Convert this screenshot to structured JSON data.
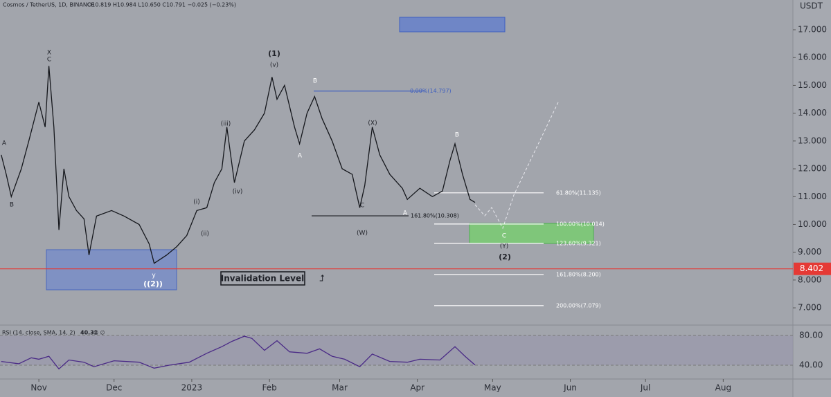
{
  "header": {
    "symbol": "Cosmos / TetherUS, 1D, BINANCE",
    "ohlc": "O10.819 H10.984 L10.650 C10.791 −0.025 (−0.23%)"
  },
  "chart_data": [
    {
      "type": "line",
      "axis_unit": "USDT",
      "x": [
        -15,
        -13,
        -11,
        -7,
        -4,
        0,
        2.5,
        4,
        6,
        8,
        10,
        12,
        15,
        18,
        20,
        23,
        29,
        34,
        40,
        44,
        46,
        51,
        55,
        59,
        63,
        67,
        70,
        73,
        75,
        78,
        82,
        86,
        90,
        93,
        95,
        98,
        102,
        104,
        107,
        110,
        113,
        117,
        121,
        125,
        128,
        130,
        133,
        136,
        140,
        145,
        147,
        152,
        157,
        161,
        164,
        166,
        169,
        172,
        174
      ],
      "series": [
        {
          "name": "Cosmos / TetherUS",
          "color": "#15171c",
          "values": [
            12.5,
            11.8,
            11.0,
            12.0,
            13.0,
            14.4,
            13.5,
            15.7,
            13.5,
            9.8,
            12.0,
            11.0,
            10.5,
            10.2,
            8.9,
            10.3,
            10.5,
            10.3,
            10.0,
            9.3,
            8.6,
            8.9,
            9.2,
            9.6,
            10.5,
            10.6,
            11.5,
            12.0,
            13.5,
            11.5,
            13.0,
            13.4,
            14.0,
            15.3,
            14.5,
            15.0,
            13.5,
            12.9,
            14.0,
            14.6,
            13.8,
            13.0,
            12.0,
            11.8,
            10.6,
            11.4,
            13.5,
            12.5,
            11.8,
            11.3,
            10.9,
            11.3,
            11.0,
            11.2,
            12.3,
            12.9,
            11.8,
            10.9,
            10.791
          ]
        }
      ],
      "xlim": [
        -15.5,
        300.8
      ],
      "xticks": [
        {
          "value": 0,
          "label": "Nov"
        },
        {
          "value": 30,
          "label": "Dec"
        },
        {
          "value": 61,
          "label": "2023"
        },
        {
          "value": 92,
          "label": "Feb"
        },
        {
          "value": 120,
          "label": "Mar"
        },
        {
          "value": 151,
          "label": "Apr"
        },
        {
          "value": 181,
          "label": "May"
        },
        {
          "value": 212,
          "label": "Jun"
        },
        {
          "value": 242,
          "label": "Jul"
        },
        {
          "value": 273,
          "label": "Aug"
        }
      ],
      "ylim": [
        6.38,
        18.07
      ],
      "yticks": [
        {
          "value": 7,
          "label": "7.000"
        },
        {
          "value": 8,
          "label": "8.000"
        },
        {
          "value": 9,
          "label": "9.000"
        },
        {
          "value": 10,
          "label": "10.000"
        },
        {
          "value": 11,
          "label": "11.000"
        },
        {
          "value": 12,
          "label": "12.000"
        },
        {
          "value": 13,
          "label": "13.000"
        },
        {
          "value": 14,
          "label": "14.000"
        },
        {
          "value": 15,
          "label": "15.000"
        },
        {
          "value": 16,
          "label": "16.000"
        },
        {
          "value": 17,
          "label": "17.000"
        }
      ],
      "invalidation": 8.402,
      "invalidation_label": "Invalidation Level",
      "fib_levels": [
        {
          "value": 14.797,
          "label": "0.00%(14.797)"
        },
        {
          "value": 10.308,
          "label": "161.80%(10.308)"
        },
        {
          "value": 11.135,
          "label": "61.80%(11.135)"
        },
        {
          "value": 10.014,
          "label": "100.00%(10.014)"
        },
        {
          "value": 9.321,
          "label": "123.60%(9.321)"
        },
        {
          "value": 8.2,
          "label": "161.80%(8.200)"
        },
        {
          "value": 7.079,
          "label": "200.00%(7.079)"
        }
      ],
      "wave_labels": [
        "A",
        "B",
        "X",
        "C",
        "y",
        "((2))",
        "(i)",
        "(ii)",
        "(iii)",
        "(iv)",
        "(1)",
        "(v)",
        "B",
        "A",
        "(X)",
        "C",
        "(W)",
        "A",
        "B",
        "C",
        "(Y)",
        "(2)"
      ]
    },
    {
      "type": "line",
      "title": "RSI (14, close, SMA, 14, 2)",
      "last_value": 40.31,
      "extra": "∅ ∅",
      "x": [
        -15,
        -8,
        -3,
        0,
        4,
        8,
        12,
        18,
        22,
        30,
        40,
        46,
        52,
        60,
        67,
        73,
        77,
        82,
        85,
        90,
        95,
        100,
        107,
        112,
        117,
        122,
        128,
        133,
        140,
        147,
        152,
        160,
        166,
        170,
        174
      ],
      "series": [
        {
          "name": "RSI",
          "color": "#4a2a86",
          "values": [
            45,
            42,
            50,
            48,
            52,
            35,
            47,
            44,
            38,
            46,
            44,
            36,
            40,
            44,
            56,
            65,
            72,
            79,
            76,
            60,
            73,
            58,
            56,
            62,
            52,
            48,
            38,
            55,
            45,
            44,
            48,
            47,
            65,
            52,
            40.31
          ]
        }
      ],
      "ylim": [
        21.4,
        94
      ],
      "yticks": [
        {
          "value": 40,
          "label": "40.00"
        },
        {
          "value": 80,
          "label": "80.00"
        }
      ]
    }
  ]
}
